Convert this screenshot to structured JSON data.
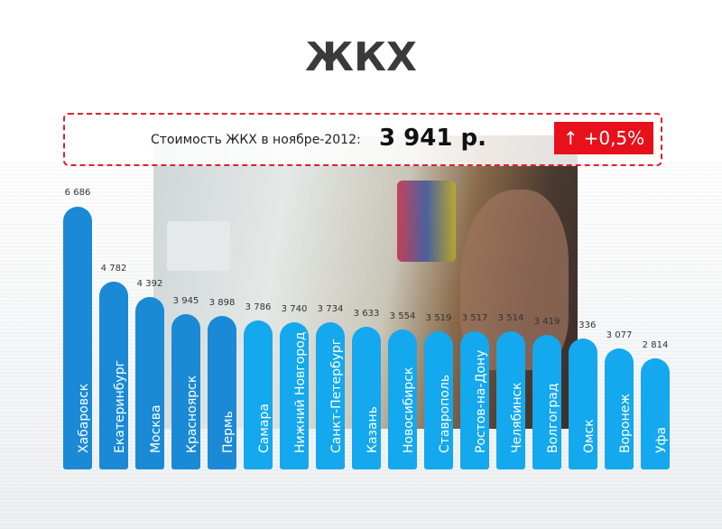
{
  "title": "ЖКХ",
  "banner": {
    "label": "Стоимость ЖКХ в ноябре-2012:",
    "value": "3 941 р.",
    "change": "+0,5%",
    "change_icon": "arrow-up-icon",
    "change_color": "#e8101a"
  },
  "chart_data": {
    "type": "bar",
    "categories": [
      "Хабаровск",
      "Екатеринбург",
      "Москва",
      "Красноярск",
      "Пермь",
      "Самара",
      "Нижний Новгород",
      "Санкт-Петербург",
      "Казань",
      "Новосибирск",
      "Ставрополь",
      "Ростов-на-Дону",
      "Челябинск",
      "Волгоград",
      "Омск",
      "Воронеж",
      "Уфа"
    ],
    "values": [
      6686,
      4782,
      4392,
      3945,
      3898,
      3786,
      3740,
      3734,
      3633,
      3554,
      3519,
      3517,
      3514,
      3419,
      3336,
      3077,
      2814
    ],
    "labels": [
      "6 686",
      "4 782",
      "4 392",
      "3 945",
      "3 898",
      "3 786",
      "3 740",
      "3 734",
      "3 633",
      "3 554",
      "3 519",
      "3 517",
      "3 514",
      "3 419",
      "3 336",
      "3 077",
      "2 814"
    ],
    "colors": {
      "dark": "#1a8ad6",
      "light": "#14a8ee"
    }
  }
}
